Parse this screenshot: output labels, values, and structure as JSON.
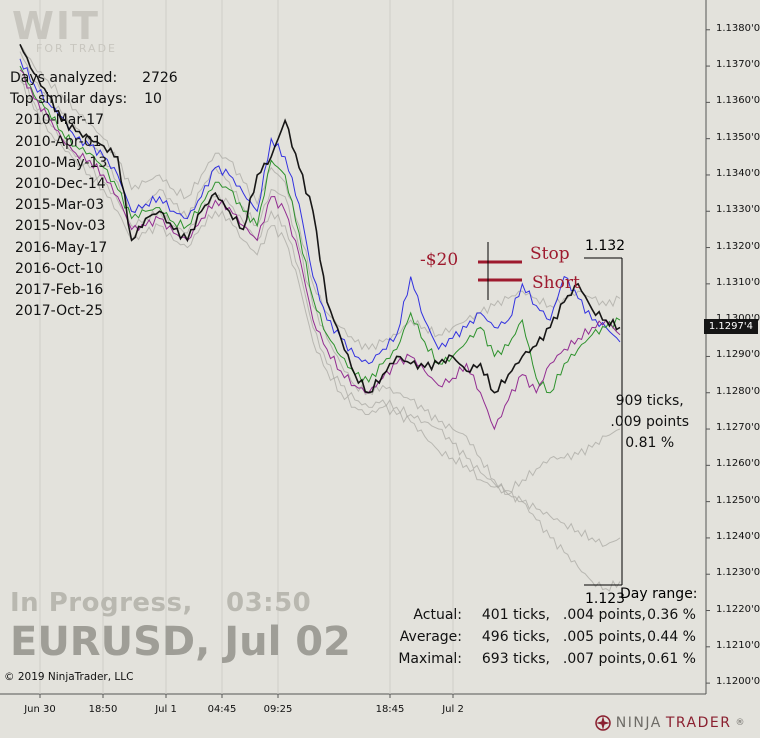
{
  "logo": {
    "letters": "WIT",
    "sub": "FOR TRADE"
  },
  "info": {
    "days_analyzed_label": "Days analyzed:",
    "days_analyzed_value": "2726",
    "top_similar_label": "Top similar days:",
    "top_similar_value": "10",
    "similar_days": [
      "2010-Mar-17",
      "2010-Apr-01",
      "2010-May-13",
      "2010-Dec-14",
      "2015-Mar-03",
      "2015-Nov-03",
      "2016-May-17",
      "2016-Oct-10",
      "2017-Feb-16",
      "2017-Oct-25"
    ]
  },
  "status": {
    "state": "In Progress,",
    "time": "03:50"
  },
  "instrument": {
    "title": "EURUSD, Jul 02"
  },
  "copyright": "© 2019 NinjaTrader, LLC",
  "annotations": {
    "pnl": "-$20",
    "stop": "Stop",
    "short": "Short"
  },
  "range": {
    "high_label": "1.132",
    "low_label": "1.123",
    "ticks": "909 ticks,",
    "points": ".009 points",
    "percent": "0.81 %"
  },
  "stats": {
    "day_range_label": "Day range:",
    "rows": [
      {
        "label": "Actual:",
        "ticks": "401 ticks,",
        "points": ".004 points,",
        "pct": "0.36 %"
      },
      {
        "label": "Average:",
        "ticks": "496 ticks,",
        "points": ".005 points,",
        "pct": "0.44 %"
      },
      {
        "label": "Maximal:",
        "ticks": "693 ticks,",
        "points": ".007 points,",
        "pct": "0.61 %"
      }
    ]
  },
  "current_price": "1.1297'4",
  "brand": {
    "ninja": "NINJA",
    "trader": "TRADER",
    "reg": "®"
  },
  "colors": {
    "background": "#e3e2dc",
    "actual": "#000000",
    "annotation": "#9e1a2e",
    "blue": "#1f1fe0",
    "green": "#1a8a1a",
    "purple": "#8a1a8a",
    "gray": "#a9a8a3"
  },
  "chart_data": {
    "type": "line",
    "y_axis": {
      "ticks": [
        "1.1380'0",
        "1.1370'0",
        "1.1360'0",
        "1.1350'0",
        "1.1340'0",
        "1.1330'0",
        "1.1320'0",
        "1.1310'0",
        "1.1300'0",
        "1.1290'0",
        "1.1280'0",
        "1.1270'0",
        "1.1260'0",
        "1.1250'0",
        "1.1240'0",
        "1.1230'0",
        "1.1220'0",
        "1.1210'0",
        "1.1200'0"
      ],
      "range": [
        1.1197,
        1.1386
      ]
    },
    "x_axis": {
      "ticks": [
        "Jun 30",
        "18:50",
        "Jul 1",
        "04:45",
        "09:25",
        "18:45",
        "Jul 2"
      ]
    },
    "series": [
      {
        "color": "black",
        "values": [
          1.1376,
          1.1368,
          1.1362,
          1.1355,
          1.1352,
          1.135,
          1.1348,
          1.1345,
          1.1322,
          1.1328,
          1.133,
          1.1325,
          1.1322,
          1.133,
          1.1335,
          1.133,
          1.1325,
          1.134,
          1.1345,
          1.1355,
          1.1342,
          1.133,
          1.1305,
          1.1295,
          1.1285,
          1.128,
          1.1285,
          1.129,
          1.1288,
          1.1287,
          1.1288,
          1.129,
          1.1286,
          1.1288,
          1.128,
          1.1285,
          1.129,
          1.1293,
          1.1298,
          1.1305,
          1.131,
          1.1303,
          1.13,
          1.1298
        ]
      },
      {
        "color": "blue",
        "values": [
          1.1372,
          1.1365,
          1.136,
          1.1356,
          1.135,
          1.1348,
          1.1345,
          1.134,
          1.133,
          1.1332,
          1.1334,
          1.133,
          1.1328,
          1.1334,
          1.1342,
          1.134,
          1.1335,
          1.133,
          1.135,
          1.1345,
          1.1332,
          1.1312,
          1.13,
          1.1295,
          1.129,
          1.1288,
          1.1292,
          1.1296,
          1.1312,
          1.13,
          1.1292,
          1.1295,
          1.1298,
          1.1302,
          1.1298,
          1.13,
          1.131,
          1.1304,
          1.13,
          1.1312,
          1.1306,
          1.13,
          1.1298,
          1.1294
        ]
      },
      {
        "color": "green",
        "values": [
          1.137,
          1.1362,
          1.1358,
          1.1352,
          1.1348,
          1.1346,
          1.1342,
          1.1336,
          1.1328,
          1.133,
          1.1331,
          1.1327,
          1.1326,
          1.1332,
          1.1338,
          1.1336,
          1.133,
          1.1326,
          1.1344,
          1.134,
          1.1324,
          1.1306,
          1.1296,
          1.129,
          1.1285,
          1.1283,
          1.1288,
          1.1292,
          1.1302,
          1.1294,
          1.1288,
          1.129,
          1.1294,
          1.1298,
          1.129,
          1.1293,
          1.13,
          1.1284,
          1.128,
          1.1288,
          1.1292,
          1.1296,
          1.1298,
          1.13
        ]
      },
      {
        "color": "purple",
        "values": [
          1.1369,
          1.1361,
          1.1356,
          1.135,
          1.1346,
          1.1344,
          1.134,
          1.1334,
          1.1325,
          1.1326,
          1.1328,
          1.1324,
          1.1322,
          1.1328,
          1.1333,
          1.1331,
          1.1326,
          1.1322,
          1.1334,
          1.133,
          1.1318,
          1.13,
          1.1292,
          1.1286,
          1.1282,
          1.128,
          1.1284,
          1.1288,
          1.129,
          1.1286,
          1.1282,
          1.1284,
          1.1288,
          1.128,
          1.127,
          1.1278,
          1.1285,
          1.128,
          1.1288,
          1.1292,
          1.1295,
          1.1298,
          1.13,
          1.1296
        ]
      },
      {
        "color": "gray",
        "values": [
          1.1374,
          1.1366,
          1.1361,
          1.1357,
          1.1353,
          1.1349,
          1.1345,
          1.1338,
          1.133,
          1.1332,
          1.1336,
          1.1332,
          1.1328,
          1.1336,
          1.1342,
          1.1338,
          1.1331,
          1.1326,
          1.1336,
          1.1334,
          1.132,
          1.1304,
          1.1295,
          1.1288,
          1.1282,
          1.128,
          1.1282,
          1.128,
          1.1278,
          1.1275,
          1.1272,
          1.127,
          1.1268,
          1.1262,
          1.1256,
          1.1252,
          1.125,
          1.1245,
          1.124,
          1.1236,
          1.1232,
          1.1228,
          1.1226,
          1.1228
        ]
      },
      {
        "color": "gray",
        "values": [
          1.1368,
          1.136,
          1.1355,
          1.135,
          1.1345,
          1.1342,
          1.1338,
          1.1333,
          1.1326,
          1.1328,
          1.133,
          1.1326,
          1.1324,
          1.133,
          1.1334,
          1.1332,
          1.1327,
          1.1322,
          1.133,
          1.1326,
          1.1314,
          1.1298,
          1.1288,
          1.1282,
          1.1278,
          1.1276,
          1.1278,
          1.1276,
          1.1274,
          1.1272,
          1.127,
          1.1266,
          1.1262,
          1.1258,
          1.1255,
          1.1253,
          1.1256,
          1.1259,
          1.1262,
          1.1262,
          1.1263,
          1.1265,
          1.1268,
          1.127
        ]
      },
      {
        "color": "gray",
        "values": [
          1.1376,
          1.137,
          1.1366,
          1.1362,
          1.1358,
          1.1354,
          1.135,
          1.1344,
          1.1336,
          1.1338,
          1.134,
          1.1336,
          1.1334,
          1.134,
          1.1346,
          1.1344,
          1.1338,
          1.1332,
          1.1342,
          1.1338,
          1.1326,
          1.131,
          1.1302,
          1.1298,
          1.1294,
          1.1292,
          1.1294,
          1.1296,
          1.13,
          1.1298,
          1.1296,
          1.1298,
          1.13,
          1.1302,
          1.1304,
          1.1306,
          1.1308,
          1.1306,
          1.1304,
          1.1306,
          1.1308,
          1.1306,
          1.1304,
          1.1306
        ]
      },
      {
        "color": "gray",
        "values": [
          1.1366,
          1.1358,
          1.1352,
          1.1348,
          1.1344,
          1.134,
          1.1336,
          1.133,
          1.1322,
          1.1324,
          1.1326,
          1.1322,
          1.132,
          1.1326,
          1.133,
          1.1328,
          1.1322,
          1.1318,
          1.1326,
          1.1322,
          1.131,
          1.1294,
          1.1286,
          1.128,
          1.1276,
          1.1274,
          1.1276,
          1.1274,
          1.1272,
          1.1268,
          1.1264,
          1.1262,
          1.126,
          1.1256,
          1.1254,
          1.1252,
          1.125,
          1.1248,
          1.1246,
          1.1244,
          1.1242,
          1.124,
          1.1238,
          1.124
        ]
      }
    ]
  }
}
